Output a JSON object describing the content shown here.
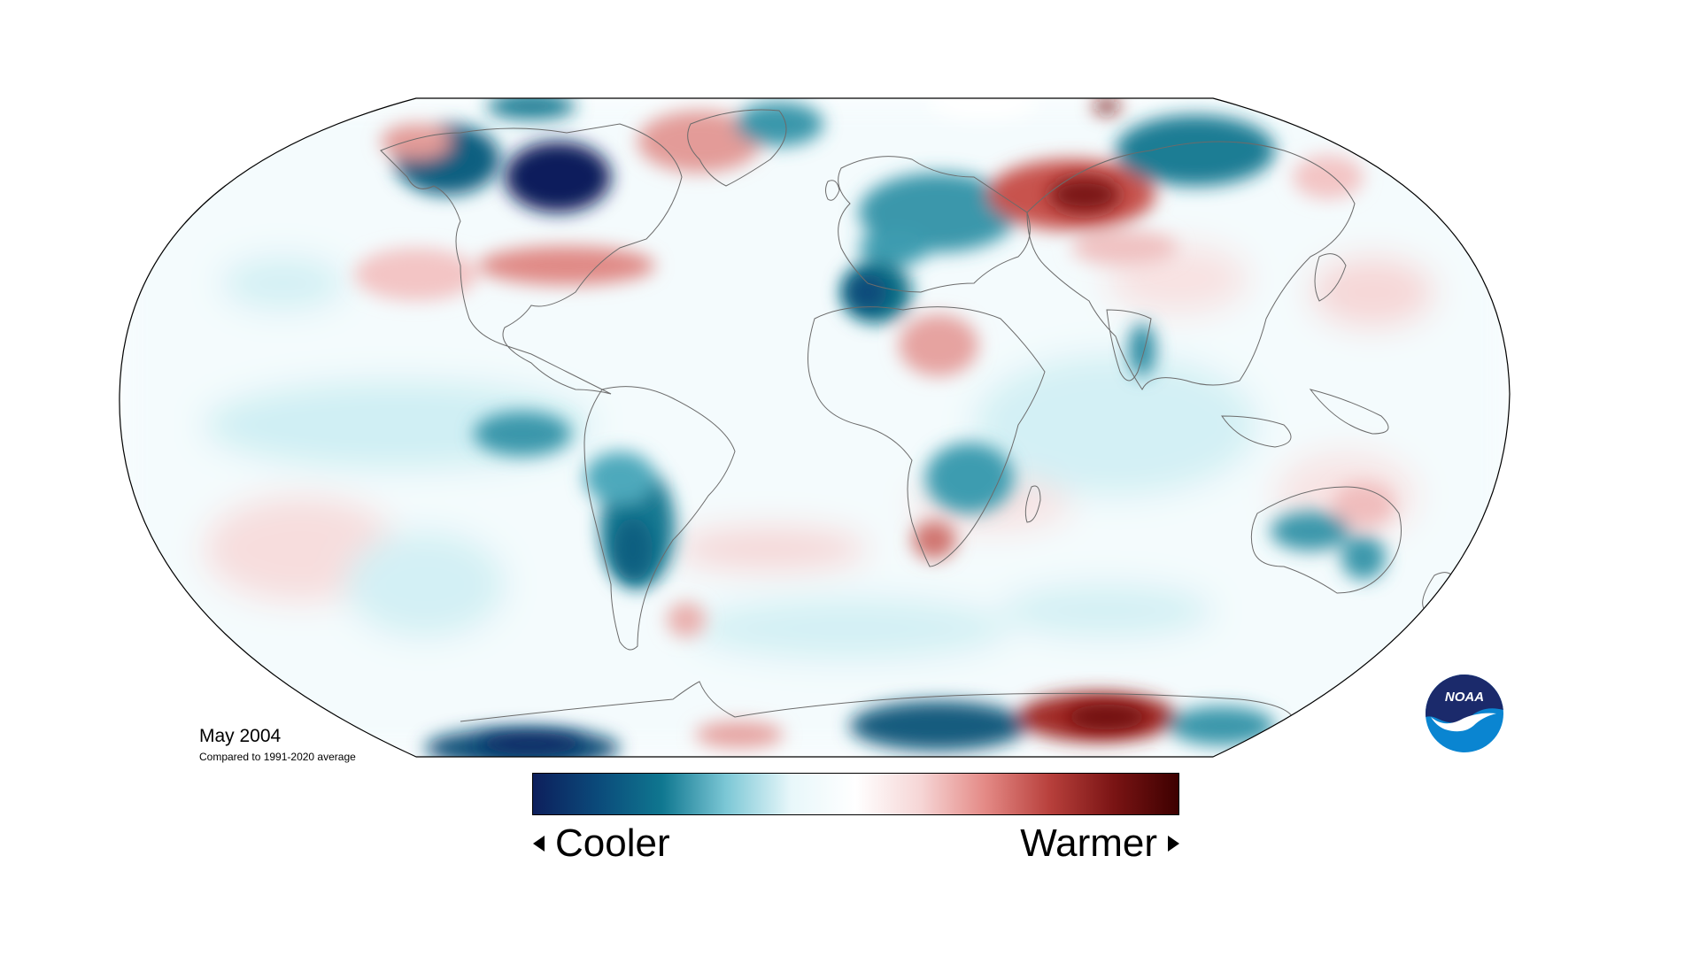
{
  "caption": {
    "title": "May 2004",
    "subtitle": "Compared to 1991-2020 average"
  },
  "legend": {
    "left_label": "Cooler",
    "right_label": "Warmer",
    "gradient_colors": [
      "#0d1f5c",
      "#0b4a7a",
      "#0f7790",
      "#7dc8d6",
      "#e8f7fa",
      "#ffffff",
      "#f6d6d6",
      "#e48a86",
      "#b8403c",
      "#7a1414",
      "#3d0000"
    ]
  },
  "logo": {
    "text": "NOAA",
    "colors": {
      "top": "#1b2a6b",
      "bottom": "#0a85d1",
      "wave": "#ffffff"
    }
  },
  "map": {
    "projection": "Robinson",
    "colors": {
      "cool_strong": "#0d1f5c",
      "cool": "#0f6f86",
      "cool_light": "#bfe8ef",
      "neutral": "#ffffff",
      "warm_light": "#f7dcdc",
      "warm": "#c8534e",
      "warm_strong": "#6e1010",
      "coast": "#6b6b6b",
      "outline": "#000000"
    }
  }
}
